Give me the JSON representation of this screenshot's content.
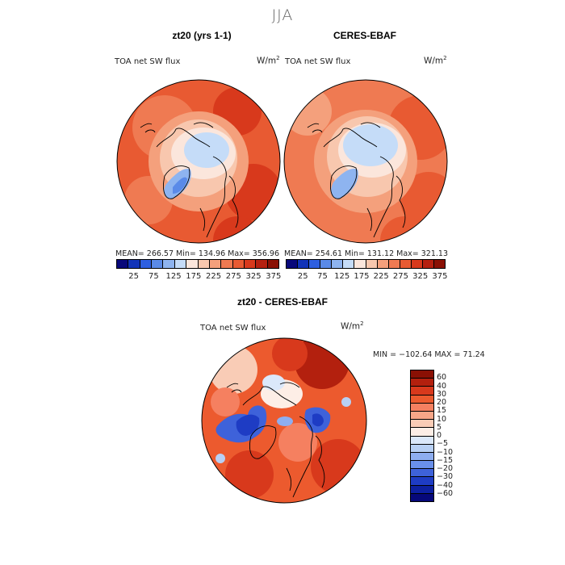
{
  "title": "JJA",
  "panels": [
    {
      "subtitle": "zt20 (yrs 1-1)",
      "field": "TOA net SW flux",
      "units_base": "W/m",
      "units_exp": "2",
      "stats": "MEAN= 266.57   Min= 134.96   Max= 356.96",
      "ticks": [
        "25",
        "75",
        "125",
        "175",
        "225",
        "275",
        "325",
        "375"
      ]
    },
    {
      "subtitle": "CERES-EBAF",
      "field": "TOA net SW flux",
      "units_base": "W/m",
      "units_exp": "2",
      "stats": "MEAN= 254.61   Min= 131.12   Max= 321.13",
      "ticks": [
        "25",
        "75",
        "125",
        "175",
        "225",
        "275",
        "325",
        "375"
      ]
    }
  ],
  "diff": {
    "subtitle": "zt20 - CERES-EBAF",
    "field": "TOA net SW flux",
    "units_base": "W/m",
    "units_exp": "2",
    "minmax": "MIN = −102.64  MAX =  71.24",
    "ticks": [
      "60",
      "40",
      "30",
      "20",
      "15",
      "10",
      "5",
      "0",
      "−5",
      "−10",
      "−15",
      "−20",
      "−30",
      "−40",
      "−60"
    ]
  },
  "colors": {
    "abs_scale": [
      "#08087a",
      "#1133b8",
      "#2e5fe0",
      "#5a8ae8",
      "#8eb4f0",
      "#c5dcf8",
      "#fbe6dc",
      "#f8c7ae",
      "#f4a07c",
      "#ef7a52",
      "#e85a32",
      "#d8391c",
      "#b52010",
      "#8a1004"
    ],
    "diff_scale": [
      "#8a1004",
      "#b3200e",
      "#d8391c",
      "#ec5a2e",
      "#f58060",
      "#f7a688",
      "#f9ccb6",
      "#fdeee6",
      "#dbe8fa",
      "#b8d0f4",
      "#8eaef0",
      "#6a90ea",
      "#3e62da",
      "#1e3cc4",
      "#0d20a0",
      "#06087a"
    ]
  }
}
